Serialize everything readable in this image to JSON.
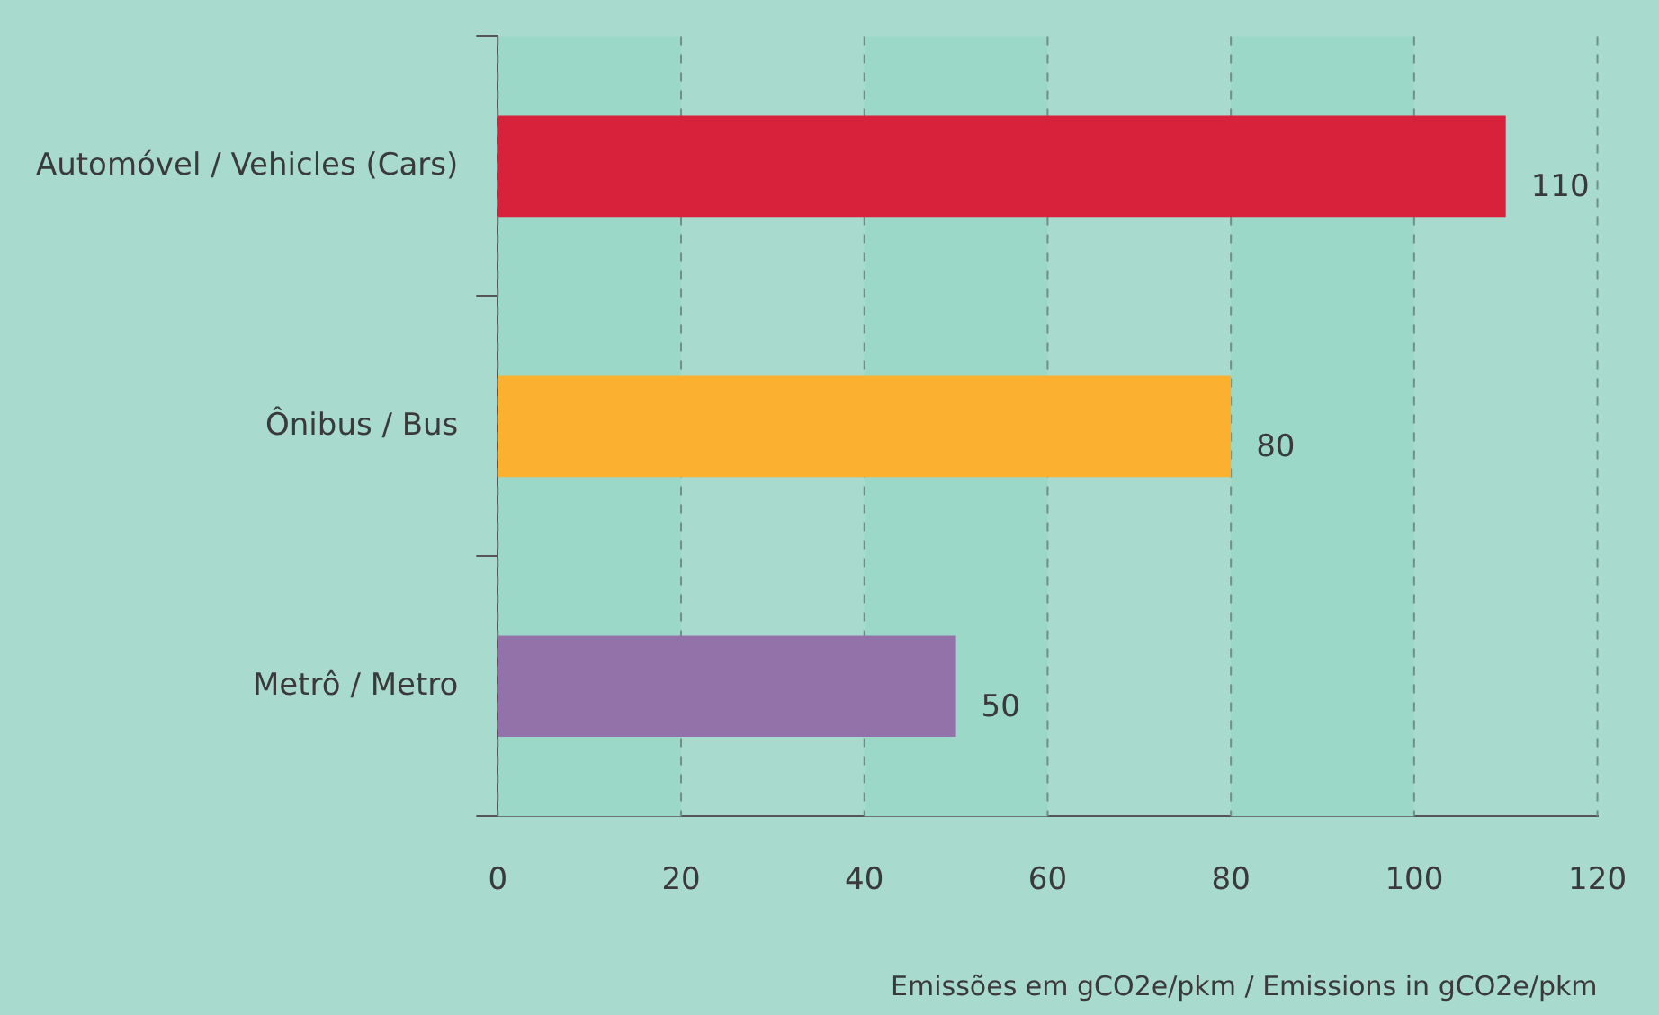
{
  "chart_data": {
    "type": "bar",
    "orientation": "horizontal",
    "categories": [
      "Automóvel / Vehicles (Cars)",
      "Ônibus / Bus",
      "Metrô / Metro"
    ],
    "values": [
      110,
      80,
      50
    ],
    "colors": [
      "#d8213a",
      "#fbb030",
      "#9272a8"
    ],
    "xlabel": "Emissões em gCO2e/pkm / Emissions in gCO2e/pkm",
    "xlim": [
      0,
      120
    ],
    "xticks": [
      0,
      20,
      40,
      60,
      80,
      100,
      120
    ],
    "grid": "x",
    "line_style": "dashed",
    "data_labels": true,
    "bands": [
      {
        "axis": "x",
        "from": 0,
        "to": 20,
        "color": "#9bd8c8"
      },
      {
        "axis": "x",
        "from": 40,
        "to": 60,
        "color": "#9bd8c8"
      },
      {
        "axis": "x",
        "from": 80,
        "to": 100,
        "color": "#9bd8c8"
      }
    ]
  }
}
